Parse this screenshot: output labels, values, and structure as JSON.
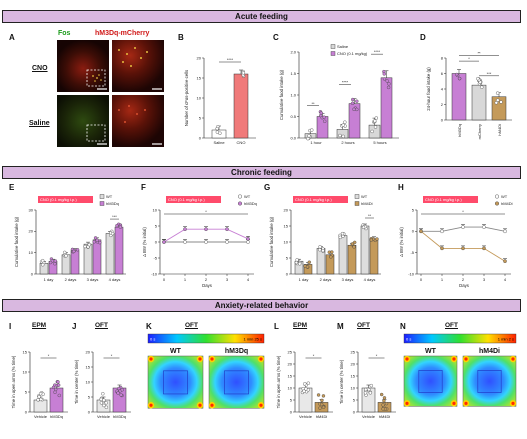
{
  "colors": {
    "banner": "#d9b8e0",
    "saline": "#ffffff",
    "cno": "#f07a7a",
    "hm3dq": "#c77fd4",
    "mcherry": "#d8d8d8",
    "hm4di": "#c49a5a",
    "wt": "#dddddd",
    "tag": "#ff4b6b",
    "line_wt": "#888888"
  },
  "banners": {
    "acute": "Acute feeding",
    "chronic": "Chronic feeding",
    "anxiety": "Anxiety-related behavior"
  },
  "panels": {
    "A": {
      "letter": "A",
      "fos": "Fos",
      "hm3dq": "hM3Dq-mCherry",
      "row1": "CNO",
      "row2": "Saline"
    },
    "B": {
      "letter": "B",
      "ylabel": "Number of cFos-positive cells",
      "sig": "****"
    },
    "C": {
      "letter": "C",
      "ylabel": "Cumulative food intake (g)",
      "legend_saline": "Saline",
      "legend_cno": "CNO (0.1 mg/kg)",
      "sig1": "**",
      "sig2": "****",
      "sig3": "****"
    },
    "D": {
      "letter": "D",
      "ylabel": "24-hour food intake (g)",
      "sig_a": "*",
      "sig_b": "**",
      "sig_c": "***"
    },
    "E": {
      "letter": "E",
      "tag": "CNO (0.1 mg/kg i.p.)",
      "ylabel": "Cumulative food intake (g)",
      "legend_wt": "WT",
      "legend_hm": "hM3Dq",
      "sig": "***"
    },
    "F": {
      "letter": "F",
      "tag": "CNO (0.1 mg/kg i.p.)",
      "ylabel": "Δ BW (% initial)",
      "xlabel": "Days",
      "legend_wt": "WT",
      "legend_hm": "hM3Dq",
      "sig": "*"
    },
    "G": {
      "letter": "G",
      "tag": "CNO (0.1 mg/kg i.p.)",
      "ylabel": "Cumulative food intake (g)",
      "legend_wt": "WT",
      "legend_hm": "hM4Di",
      "sig": "**"
    },
    "H": {
      "letter": "H",
      "tag": "CNO (0.1 mg/kg i.p.)",
      "ylabel": "Δ BW (% initial)",
      "xlabel": "Days",
      "legend_wt": "WT",
      "legend_hm": "hM4Di",
      "sig": "*"
    },
    "I": {
      "letter": "I",
      "title": "EPM",
      "ylabel": "Time in open arms (% time)",
      "sig": "*"
    },
    "J": {
      "letter": "J",
      "title": "OFT",
      "ylabel": "Time in center (% time)",
      "sig": "*"
    },
    "K": {
      "letter": "K",
      "title": "OFT",
      "scale_min": "0 s",
      "scale_max": "1 min 25 s",
      "wt": "WT",
      "hm": "hM3Dq"
    },
    "L": {
      "letter": "L",
      "title": "EPM",
      "ylabel": "Time in open arms (% time)",
      "sig": "*"
    },
    "M": {
      "letter": "M",
      "title": "OFT",
      "ylabel": "Time in center (% time)",
      "sig": "*"
    },
    "N": {
      "letter": "N",
      "title": "OFT",
      "scale_min": "0 s",
      "scale_max": "1 min 2 s",
      "wt": "WT",
      "hm": "hM4Di"
    }
  },
  "chart_data": [
    {
      "panel": "B",
      "type": "bar",
      "categories": [
        "Saline",
        "CNO"
      ],
      "values": [
        2,
        16
      ],
      "ylim": [
        0,
        20
      ],
      "yticks": [
        0,
        5,
        10,
        15,
        20
      ]
    },
    {
      "panel": "C",
      "type": "bar",
      "categories": [
        "1 hour",
        "2 hours",
        "5 hours"
      ],
      "series": [
        {
          "name": "Saline",
          "values": [
            0.1,
            0.2,
            0.3
          ]
        },
        {
          "name": "CNO (0.1 mg/kg)",
          "values": [
            0.5,
            0.8,
            1.4
          ]
        }
      ],
      "ylim": [
        0,
        2.0
      ],
      "yticks": [
        "0.0",
        "0.5",
        "1.0",
        "1.5",
        "2.0"
      ]
    },
    {
      "panel": "D",
      "type": "bar",
      "categories": [
        "hM3Dq",
        "mCherry",
        "hM4Di"
      ],
      "values": [
        6,
        4.5,
        3
      ],
      "ylim": [
        0,
        8
      ],
      "yticks": [
        0,
        2,
        4,
        6,
        8
      ]
    },
    {
      "panel": "E",
      "type": "bar",
      "categories": [
        "1 day",
        "2 days",
        "3 days",
        "4 days"
      ],
      "series": [
        {
          "name": "WT",
          "values": [
            5,
            9,
            14,
            19
          ]
        },
        {
          "name": "hM3Dq",
          "values": [
            6,
            11,
            16,
            22
          ]
        }
      ],
      "ylim": [
        0,
        30
      ],
      "yticks": [
        0,
        10,
        20,
        30
      ]
    },
    {
      "panel": "F",
      "type": "line",
      "x": [
        0,
        1,
        2,
        3,
        4
      ],
      "series": [
        {
          "name": "WT",
          "values": [
            0,
            0,
            0,
            0,
            0
          ]
        },
        {
          "name": "hM3Dq",
          "values": [
            0,
            4,
            4,
            4,
            1
          ]
        }
      ],
      "ylim": [
        -10,
        10
      ],
      "yticks": [
        -10,
        -5,
        0,
        5,
        10
      ],
      "xticks": [
        0,
        1,
        2,
        3,
        4
      ]
    },
    {
      "panel": "G",
      "type": "bar",
      "categories": [
        "1 day",
        "2 days",
        "3 days",
        "4 days"
      ],
      "series": [
        {
          "name": "WT",
          "values": [
            4,
            8,
            12,
            15
          ]
        },
        {
          "name": "hM4Di",
          "values": [
            3,
            6,
            9,
            11
          ]
        }
      ],
      "ylim": [
        0,
        20
      ],
      "yticks": [
        0,
        5,
        10,
        15,
        20
      ]
    },
    {
      "panel": "H",
      "type": "line",
      "x": [
        0,
        1,
        2,
        3,
        4
      ],
      "series": [
        {
          "name": "WT",
          "values": [
            0,
            0,
            1,
            1,
            0
          ]
        },
        {
          "name": "hM4Di",
          "values": [
            0,
            -4,
            -4,
            -4,
            -7
          ]
        }
      ],
      "ylim": [
        -10,
        5
      ],
      "yticks": [
        -10,
        -5,
        0,
        5
      ],
      "xticks": [
        0,
        1,
        2,
        3,
        4
      ]
    },
    {
      "panel": "I",
      "type": "bar",
      "categories": [
        "Vehicle",
        "hM3Dq"
      ],
      "values": [
        3,
        6
      ],
      "ylim": [
        0,
        15
      ],
      "yticks": [
        0,
        5,
        10,
        15
      ]
    },
    {
      "panel": "J",
      "type": "bar",
      "categories": [
        "Vehicle",
        "hM3Dq"
      ],
      "values": [
        4,
        8
      ],
      "ylim": [
        0,
        20
      ],
      "yticks": [
        0,
        5,
        10,
        15,
        20
      ]
    },
    {
      "panel": "L",
      "type": "bar",
      "categories": [
        "Vehicle",
        "hM4Di"
      ],
      "values": [
        10,
        4
      ],
      "ylim": [
        0,
        25
      ],
      "yticks": [
        0,
        5,
        10,
        15,
        20,
        25
      ]
    },
    {
      "panel": "M",
      "type": "bar",
      "categories": [
        "Vehicle",
        "hM4Di"
      ],
      "values": [
        10,
        4
      ],
      "ylim": [
        0,
        25
      ],
      "yticks": [
        0,
        5,
        10,
        15,
        20,
        25
      ]
    }
  ]
}
